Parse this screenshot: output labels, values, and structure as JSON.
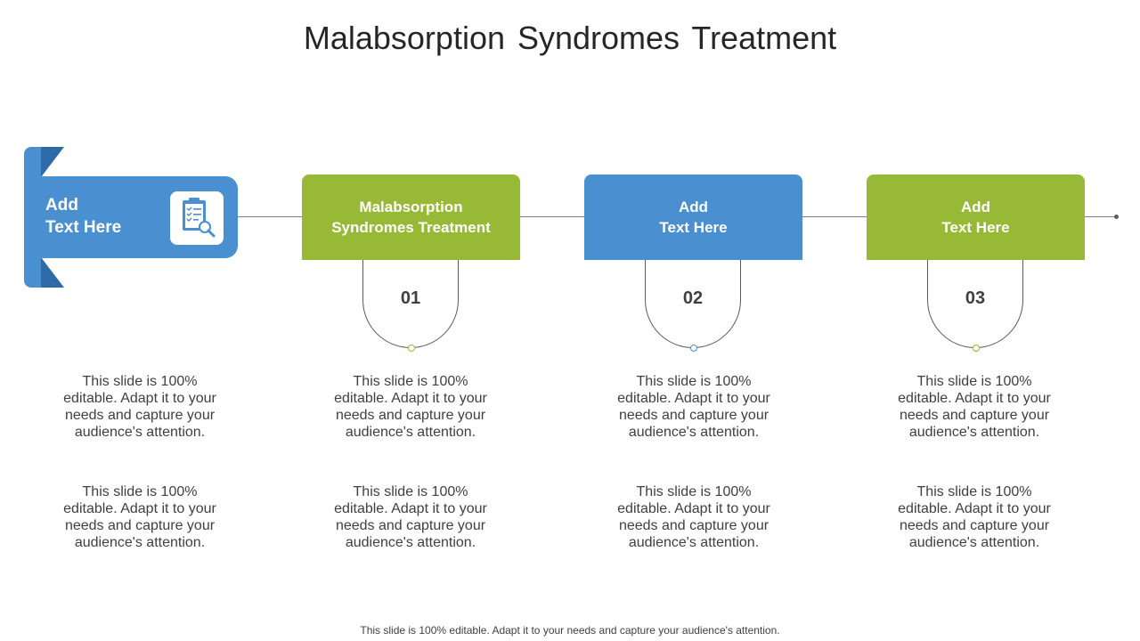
{
  "title": "Malabsorption Syndromes Treatment",
  "lead": {
    "text": "Add\nText Here",
    "icon": "clipboard-search-icon",
    "color": "#4a8fd0"
  },
  "steps": [
    {
      "label": "Malabsorption\nSyndromes Treatment",
      "number": "01",
      "color": "#97b935"
    },
    {
      "label": "Add\nText Here",
      "number": "02",
      "color": "#4a8fd0"
    },
    {
      "label": "Add\nText Here",
      "number": "03",
      "color": "#97b935"
    }
  ],
  "descriptions": [
    [
      "This slide is 100% editable. Adapt it to your needs and capture your audience's attention.",
      "This slide is 100% editable. Adapt it to your needs and capture your audience's attention."
    ],
    [
      "This slide is 100% editable. Adapt it to your needs and capture your audience's attention.",
      "This slide is 100% editable. Adapt it to your needs and capture your audience's attention."
    ],
    [
      "This slide is 100% editable. Adapt it to your needs and capture your audience's attention.",
      "This slide is 100% editable. Adapt it to your needs and capture your audience's attention."
    ],
    [
      "This slide is 100% editable. Adapt it to your needs and capture your audience's attention.",
      "This slide is 100% editable. Adapt it to your needs and capture your audience's attention."
    ]
  ],
  "footer": "This slide is 100% editable. Adapt it to your needs and capture your audience's attention."
}
